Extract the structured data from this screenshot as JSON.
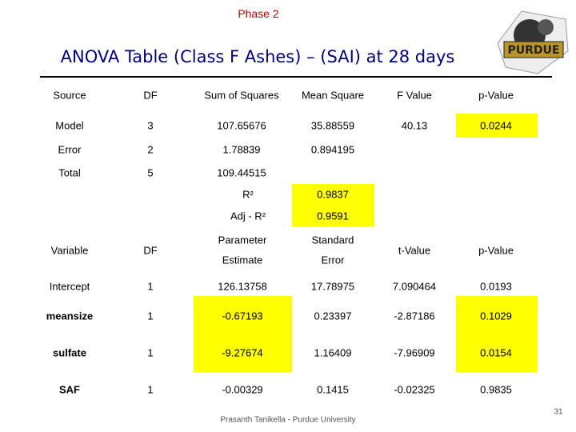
{
  "header": {
    "phase": "Phase 2",
    "title": "ANOVA Table (Class F Ashes) – (SAI) at 28 days"
  },
  "table1": {
    "columns": [
      "Source",
      "DF",
      "Sum of Squares",
      "Mean Square",
      "F Value",
      "p-Value"
    ],
    "rows": [
      [
        "Model",
        "3",
        "107.65676",
        "35.88559",
        "40.13",
        "0.0244"
      ],
      [
        "Error",
        "2",
        "1.78839",
        "0.894195"
      ],
      [
        "Total",
        "5",
        "109.44515"
      ]
    ]
  },
  "fit": {
    "rows": [
      [
        "R²",
        "0.9837"
      ],
      [
        "Adj - R²",
        "0.9591"
      ]
    ]
  },
  "table2": {
    "columns": [
      [
        "Variable"
      ],
      [
        "DF"
      ],
      [
        "Parameter",
        "Estimate"
      ],
      [
        "Standard",
        "Error"
      ],
      [
        "t-Value"
      ],
      [
        "p-Value"
      ]
    ],
    "rows": [
      [
        "Intercept",
        "1",
        "126.13758",
        "17.78975",
        "7.090464",
        "0.0193"
      ],
      [
        "meansize",
        "1",
        "-0.67193",
        "0.23397",
        "-2.87186",
        "0.1029"
      ],
      [
        "sulfate",
        "1",
        "-9.27674",
        "1.16409",
        "-7.96909",
        "0.0154"
      ],
      [
        "SAF",
        "1",
        "-0.00329",
        "0.1415",
        "-0.02325",
        "0.9835"
      ]
    ]
  },
  "footer": {
    "text": "Prasanth Tanikella - Purdue University",
    "page": "31"
  }
}
